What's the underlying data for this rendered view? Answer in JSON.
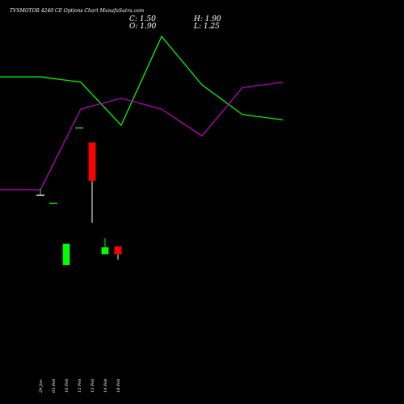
{
  "header": {
    "title": "TVSMOTOR 4240 CE Options Chart MunafaSutra.com",
    "close_text": "C: 1.50",
    "open_text": "O: 1.90",
    "high_text": "H: 1.90",
    "low_text": "L: 1.25"
  },
  "colors": {
    "background": "#000000",
    "up": "#00ff00",
    "down": "#ff0000",
    "line_green": "#00ff00",
    "line_magenta": "#c000c0"
  },
  "chart_data": {
    "type": "candlestick",
    "x_labels": [
      "29 Jan",
      "03 Feb",
      "10 Feb",
      "12 Feb",
      "13 Feb",
      "14 Feb",
      "18 Feb"
    ],
    "candles": [
      {
        "open": 74.0,
        "high": 76.3,
        "low": 74.0,
        "close": 74.0
      },
      {
        "open": 71.0,
        "high": 71.0,
        "low": 71.0,
        "close": 71.0
      },
      {
        "open": 48.0,
        "high": 56.0,
        "low": 48.0,
        "close": 56.0
      },
      {
        "open": 99.0,
        "high": 99.0,
        "low": 99.0,
        "close": 99.0
      },
      {
        "open": 93.6,
        "high": 93.6,
        "low": 63.7,
        "close": 79.3
      },
      {
        "open": 52.0,
        "high": 58.0,
        "low": 52.0,
        "close": 54.7
      },
      {
        "open": 55.0,
        "high": 55.0,
        "low": 50.0,
        "close": 52.0
      }
    ],
    "overlay_lines": [
      {
        "color": "green",
        "values": [
          118,
          118,
          116,
          100,
          133,
          115,
          104,
          102
        ]
      },
      {
        "color": "magenta",
        "values": [
          76,
          76,
          106,
          110,
          106,
          96,
          114,
          116
        ]
      }
    ],
    "y_range": [
      40,
      140
    ],
    "grid": false
  }
}
